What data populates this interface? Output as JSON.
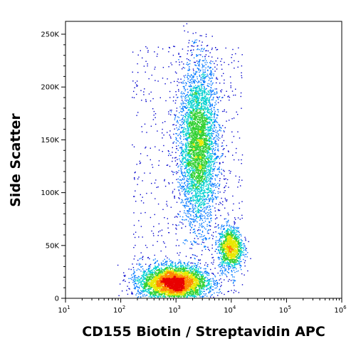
{
  "chart_data": {
    "type": "scatter",
    "title": "",
    "xlabel": "CD155 Biotin / Streptavidin APC",
    "ylabel": "Side Scatter",
    "x_scale": "log",
    "xlim": [
      10,
      1000000
    ],
    "ylim": [
      0,
      262144
    ],
    "x_ticks": [
      {
        "value": 10,
        "base": "10",
        "exp": "1"
      },
      {
        "value": 100,
        "base": "10",
        "exp": "2"
      },
      {
        "value": 1000,
        "base": "10",
        "exp": "3"
      },
      {
        "value": 10000,
        "base": "10",
        "exp": "4"
      },
      {
        "value": 100000,
        "base": "10",
        "exp": "5"
      },
      {
        "value": 1000000,
        "base": "10",
        "exp": "6"
      }
    ],
    "y_ticks": [
      {
        "value": 0,
        "label": "0"
      },
      {
        "value": 50000,
        "label": "50K"
      },
      {
        "value": 100000,
        "label": "100K"
      },
      {
        "value": 150000,
        "label": "150K"
      },
      {
        "value": 200000,
        "label": "200K"
      },
      {
        "value": 250000,
        "label": "250K"
      }
    ],
    "density_colors": [
      "#0000cc",
      "#0077ff",
      "#00d0d0",
      "#30d030",
      "#e8e800",
      "#ff8800",
      "#e80000"
    ],
    "populations": [
      {
        "x_center": 900,
        "y_center": 15000,
        "x_spread_decades": 0.3,
        "y_spread": 8000,
        "density": "high"
      },
      {
        "x_center": 2500,
        "y_center": 145000,
        "x_spread_decades": 0.17,
        "y_spread": 38000,
        "density": "medium"
      },
      {
        "x_center": 9500,
        "y_center": 48000,
        "x_spread_decades": 0.11,
        "y_spread": 10000,
        "density": "low"
      }
    ],
    "grid": false,
    "legend": "none"
  }
}
